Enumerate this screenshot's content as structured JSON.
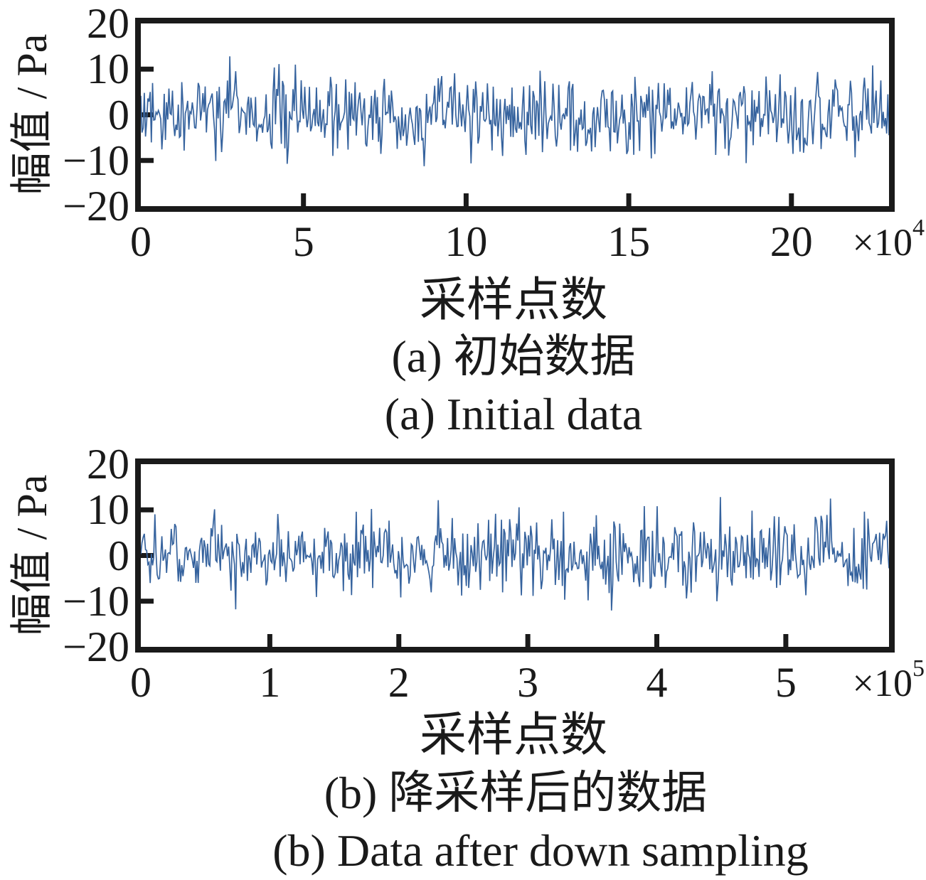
{
  "colors": {
    "signal": "#36639E",
    "axis": "#1a1a1a",
    "background": "#ffffff"
  },
  "charts": [
    {
      "ylabel": "幅值 / Pa",
      "xlabel": "采样点数",
      "caption_zh": "(a) 初始数据",
      "caption_en": "(a) Initial data",
      "x_exponent": {
        "prefix": "×10",
        "power": "4"
      },
      "ytick_labels": [
        "20",
        "10",
        "0",
        "−10",
        "−20"
      ],
      "xtick_labels": [
        "0",
        "5",
        "10",
        "15",
        "20"
      ]
    },
    {
      "ylabel": "幅值 / Pa",
      "xlabel": "采样点数",
      "caption_zh": "(b) 降采样后的数据",
      "caption_en": "(b) Data after down sampling",
      "x_exponent": {
        "prefix": "×10",
        "power": "5"
      },
      "ytick_labels": [
        "20",
        "10",
        "0",
        "−10",
        "−20"
      ],
      "xtick_labels": [
        "0",
        "1",
        "2",
        "3",
        "4",
        "5"
      ]
    }
  ],
  "chart_data": [
    {
      "type": "line",
      "title": "(a) 初始数据 / (a) Initial data",
      "xlabel": "采样点数",
      "ylabel": "幅值 / Pa",
      "x_scale_factor": "×10^4",
      "xlim": [
        0,
        23
      ],
      "xticks": [
        0,
        5,
        10,
        15,
        20
      ],
      "ylim": [
        -20,
        20
      ],
      "yticks": [
        20,
        10,
        0,
        -10,
        -20
      ],
      "grid": false,
      "legend": false,
      "series": [
        {
          "name": "幅值/Pa",
          "kind": "broadband-gaussian-noise",
          "mean": 0,
          "std": 4.2,
          "peak_abs": 12.8,
          "n_points": 640,
          "seed": 20240
        }
      ]
    },
    {
      "type": "line",
      "title": "(b) 降采样后的数据 / (b) Data after down sampling",
      "xlabel": "采样点数",
      "ylabel": "幅值 / Pa",
      "x_scale_factor": "×10^5",
      "xlim": [
        0,
        5.8
      ],
      "xticks": [
        0,
        1,
        2,
        3,
        4,
        5
      ],
      "ylim": [
        -20,
        20
      ],
      "yticks": [
        20,
        10,
        0,
        -10,
        -20
      ],
      "grid": false,
      "legend": false,
      "series": [
        {
          "name": "幅值/Pa",
          "kind": "broadband-gaussian-noise",
          "mean": 0,
          "std": 4.2,
          "peak_abs": 12.8,
          "n_points": 640,
          "seed": 7331
        }
      ]
    }
  ]
}
